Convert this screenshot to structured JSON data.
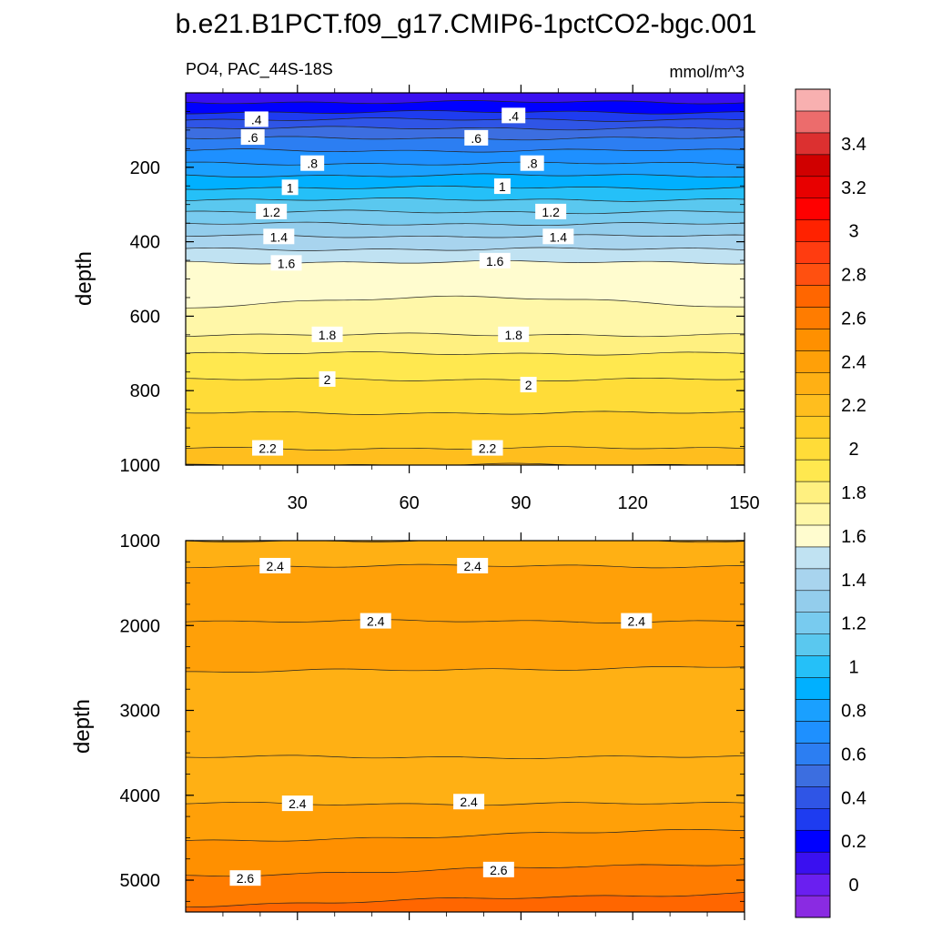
{
  "title": "b.e21.B1PCT.f09_g17.CMIP6-1pctCO2-bgc.001",
  "chart_data": [
    {
      "type": "contour",
      "panel": "upper",
      "left_label": "PO4, PAC_44S-18S",
      "right_label": "mmol/m^3",
      "ylabel": "depth",
      "xlim": [
        0,
        150
      ],
      "ylim": [
        1000,
        0
      ],
      "x_ticks": [
        "30",
        "60",
        "90",
        "120",
        "150"
      ],
      "x_tick_values": [
        30,
        60,
        90,
        120,
        150
      ],
      "y_ticks": [
        "200",
        "400",
        "600",
        "800",
        "1000"
      ],
      "y_tick_values": [
        200,
        400,
        600,
        800,
        1000
      ],
      "depth_of_level": [
        {
          "v": 0.2,
          "d": 25
        },
        {
          "v": 0.3,
          "d": 52
        },
        {
          "v": 0.4,
          "d": 72
        },
        {
          "v": 0.5,
          "d": 95
        },
        {
          "v": 0.6,
          "d": 122
        },
        {
          "v": 0.7,
          "d": 155
        },
        {
          "v": 0.8,
          "d": 190
        },
        {
          "v": 0.9,
          "d": 222
        },
        {
          "v": 1.0,
          "d": 255
        },
        {
          "v": 1.1,
          "d": 287
        },
        {
          "v": 1.2,
          "d": 320
        },
        {
          "v": 1.3,
          "d": 352
        },
        {
          "v": 1.4,
          "d": 385
        },
        {
          "v": 1.5,
          "d": 420
        },
        {
          "v": 1.6,
          "d": 455
        },
        {
          "v": 1.7,
          "d": 575
        },
        {
          "v": 1.8,
          "d": 650
        },
        {
          "v": 1.9,
          "d": 700
        },
        {
          "v": 2.0,
          "d": 770
        },
        {
          "v": 2.1,
          "d": 860
        },
        {
          "v": 2.2,
          "d": 955
        },
        {
          "v": 2.3,
          "d": 1000
        }
      ],
      "contour_labels": [
        {
          "text": ".4",
          "x": 19,
          "depth": 72
        },
        {
          "text": ".4",
          "x": 88,
          "depth": 62
        },
        {
          "text": ".6",
          "x": 18,
          "depth": 120
        },
        {
          "text": ".6",
          "x": 78,
          "depth": 122
        },
        {
          "text": ".8",
          "x": 34,
          "depth": 190
        },
        {
          "text": ".8",
          "x": 93,
          "depth": 190
        },
        {
          "text": "1",
          "x": 28,
          "depth": 255
        },
        {
          "text": "1",
          "x": 85,
          "depth": 252
        },
        {
          "text": "1.2",
          "x": 23,
          "depth": 320
        },
        {
          "text": "1.2",
          "x": 98,
          "depth": 320
        },
        {
          "text": "1.4",
          "x": 25,
          "depth": 387
        },
        {
          "text": "1.4",
          "x": 100,
          "depth": 387
        },
        {
          "text": "1.6",
          "x": 27,
          "depth": 458
        },
        {
          "text": "1.6",
          "x": 83,
          "depth": 452
        },
        {
          "text": "1.8",
          "x": 38,
          "depth": 650
        },
        {
          "text": "1.8",
          "x": 88,
          "depth": 650
        },
        {
          "text": "2",
          "x": 38,
          "depth": 770
        },
        {
          "text": "2",
          "x": 92,
          "depth": 785
        },
        {
          "text": "2.2",
          "x": 22,
          "depth": 955
        },
        {
          "text": "2.2",
          "x": 81,
          "depth": 955
        }
      ]
    },
    {
      "type": "contour",
      "panel": "lower",
      "ylabel": "depth",
      "xlim": [
        0,
        150
      ],
      "ylim": [
        5375,
        1000
      ],
      "y_ticks": [
        "1000",
        "2000",
        "3000",
        "4000",
        "5000"
      ],
      "y_tick_values": [
        1000,
        2000,
        3000,
        4000,
        5000
      ],
      "x_tick_values": [
        30,
        60,
        90,
        120,
        150
      ],
      "depth_of_level": [
        {
          "v": 2.3,
          "d": 1000
        },
        {
          "v": 2.4,
          "d": 1300
        },
        {
          "v": 2.45,
          "d": 1950
        },
        {
          "v": 2.4,
          "d": 2550
        },
        {
          "v": 2.35,
          "d": 3550
        },
        {
          "v": 2.4,
          "d": 4100
        },
        {
          "v": 2.5,
          "d": 4550
        },
        {
          "v": 2.6,
          "d": 4950
        },
        {
          "v": 2.7,
          "d": 5300
        }
      ],
      "contour_labels": [
        {
          "text": "2.4",
          "x": 24,
          "depth": 1300
        },
        {
          "text": "2.4",
          "x": 77,
          "depth": 1300
        },
        {
          "text": "2.4",
          "x": 51,
          "depth": 1950
        },
        {
          "text": "2.4",
          "x": 121,
          "depth": 1950
        },
        {
          "text": "2.4",
          "x": 30,
          "depth": 4100
        },
        {
          "text": "2.4",
          "x": 76,
          "depth": 4080
        },
        {
          "text": "2.6",
          "x": 16,
          "depth": 4980
        },
        {
          "text": "2.6",
          "x": 84,
          "depth": 4880
        }
      ]
    }
  ],
  "colorbar": {
    "tick_labels": [
      "0",
      "0.2",
      "0.4",
      "0.6",
      "0.8",
      "1",
      "1.2",
      "1.4",
      "1.6",
      "1.8",
      "2",
      "2.2",
      "2.4",
      "2.6",
      "2.8",
      "3",
      "3.2",
      "3.4"
    ],
    "tick_values": [
      0,
      0.2,
      0.4,
      0.6,
      0.8,
      1.0,
      1.2,
      1.4,
      1.6,
      1.8,
      2.0,
      2.2,
      2.4,
      2.6,
      2.8,
      3.0,
      3.2,
      3.4
    ],
    "colors": [
      "#8a2be2",
      "#6a1ff0",
      "#3a10f0",
      "#0000ff",
      "#1e3cf0",
      "#2f55e6",
      "#3c6ee0",
      "#2c7ef2",
      "#1e90ff",
      "#1aa0ff",
      "#00b0ff",
      "#25c0f8",
      "#5ac8ef",
      "#78cbef",
      "#93cdec",
      "#a8d4ee",
      "#c0e2f2",
      "#fffccf",
      "#fff7a8",
      "#fff080",
      "#ffe84f",
      "#ffdc38",
      "#ffcc26",
      "#ffbe1e",
      "#ffb014",
      "#ffa008",
      "#ff9000",
      "#ff7c00",
      "#ff6600",
      "#ff5010",
      "#ff3c10",
      "#ff2200",
      "#ff0000",
      "#e80000",
      "#d00000",
      "#dc3030",
      "#ec6c6c",
      "#f8b0b0"
    ]
  }
}
